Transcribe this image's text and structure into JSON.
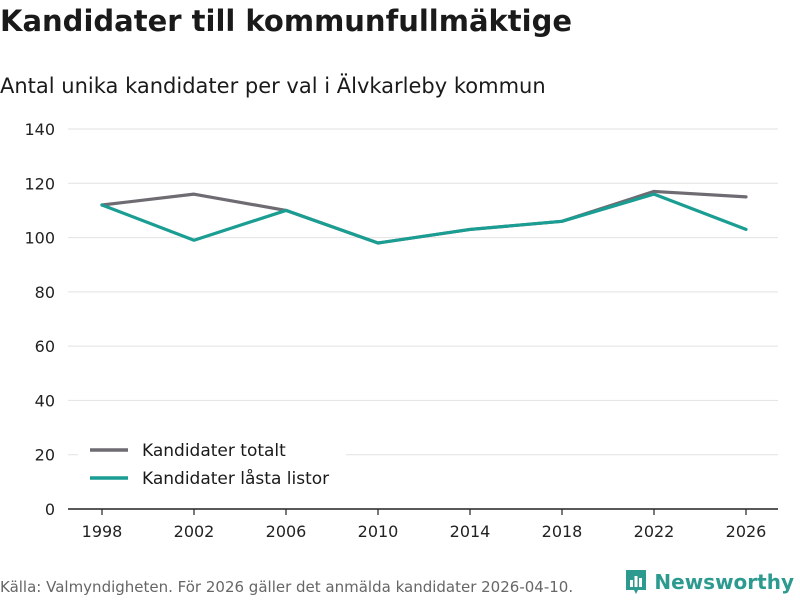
{
  "header": {
    "title": "Kandidater till kommunfullmäktige",
    "subtitle": "Antal unika kandidater per val i Älvkarleby kommun"
  },
  "footer": {
    "source": "Källa: Valmyndigheten. För 2026 gäller det anmälda kandidater 2026-04-10.",
    "brand": "Newsworthy"
  },
  "colors": {
    "series_total": "#6e6c72",
    "series_locked": "#1a9e93",
    "brand": "#2c9a8f",
    "grid": "#e2e2e2"
  },
  "chart_data": {
    "type": "line",
    "title": "Kandidater till kommunfullmäktige",
    "subtitle": "Antal unika kandidater per val i Älvkarleby kommun",
    "xlabel": "",
    "ylabel": "",
    "x": [
      "1998",
      "2002",
      "2006",
      "2010",
      "2014",
      "2018",
      "2022",
      "2026"
    ],
    "ylim": [
      0,
      140
    ],
    "yticks": [
      "0",
      "20",
      "40",
      "60",
      "80",
      "100",
      "120",
      "140"
    ],
    "grid": true,
    "legend_position": "bottom-left",
    "series": [
      {
        "name": "Kandidater totalt",
        "values": [
          112,
          116,
          110,
          98,
          103,
          106,
          117,
          115
        ]
      },
      {
        "name": "Kandidater låsta listor",
        "values": [
          112,
          99,
          110,
          98,
          103,
          106,
          116,
          103
        ]
      }
    ]
  }
}
